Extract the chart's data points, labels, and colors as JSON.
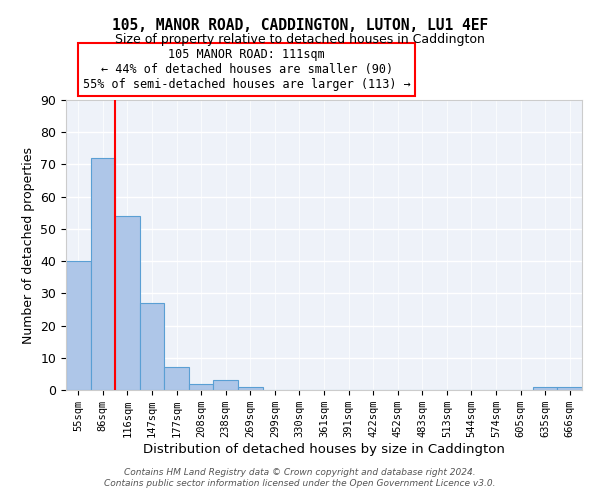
{
  "title": "105, MANOR ROAD, CADDINGTON, LUTON, LU1 4EF",
  "subtitle": "Size of property relative to detached houses in Caddington",
  "xlabel": "Distribution of detached houses by size in Caddington",
  "ylabel": "Number of detached properties",
  "categories": [
    "55sqm",
    "86sqm",
    "116sqm",
    "147sqm",
    "177sqm",
    "208sqm",
    "238sqm",
    "269sqm",
    "299sqm",
    "330sqm",
    "361sqm",
    "391sqm",
    "422sqm",
    "452sqm",
    "483sqm",
    "513sqm",
    "544sqm",
    "574sqm",
    "605sqm",
    "635sqm",
    "666sqm"
  ],
  "values": [
    40,
    72,
    54,
    27,
    7,
    2,
    3,
    1,
    0,
    0,
    0,
    0,
    0,
    0,
    0,
    0,
    0,
    0,
    0,
    1,
    1
  ],
  "bar_color": "#aec6e8",
  "bar_edge_color": "#5a9fd4",
  "red_line_x": 1.5,
  "annotation_text": "105 MANOR ROAD: 111sqm\n← 44% of detached houses are smaller (90)\n55% of semi-detached houses are larger (113) →",
  "annotation_box_color": "white",
  "annotation_box_edge_color": "red",
  "ylim": [
    0,
    90
  ],
  "yticks": [
    0,
    10,
    20,
    30,
    40,
    50,
    60,
    70,
    80,
    90
  ],
  "background_color": "#eef2f9",
  "grid_color": "white",
  "footer_line1": "Contains HM Land Registry data © Crown copyright and database right 2024.",
  "footer_line2": "Contains public sector information licensed under the Open Government Licence v3.0."
}
